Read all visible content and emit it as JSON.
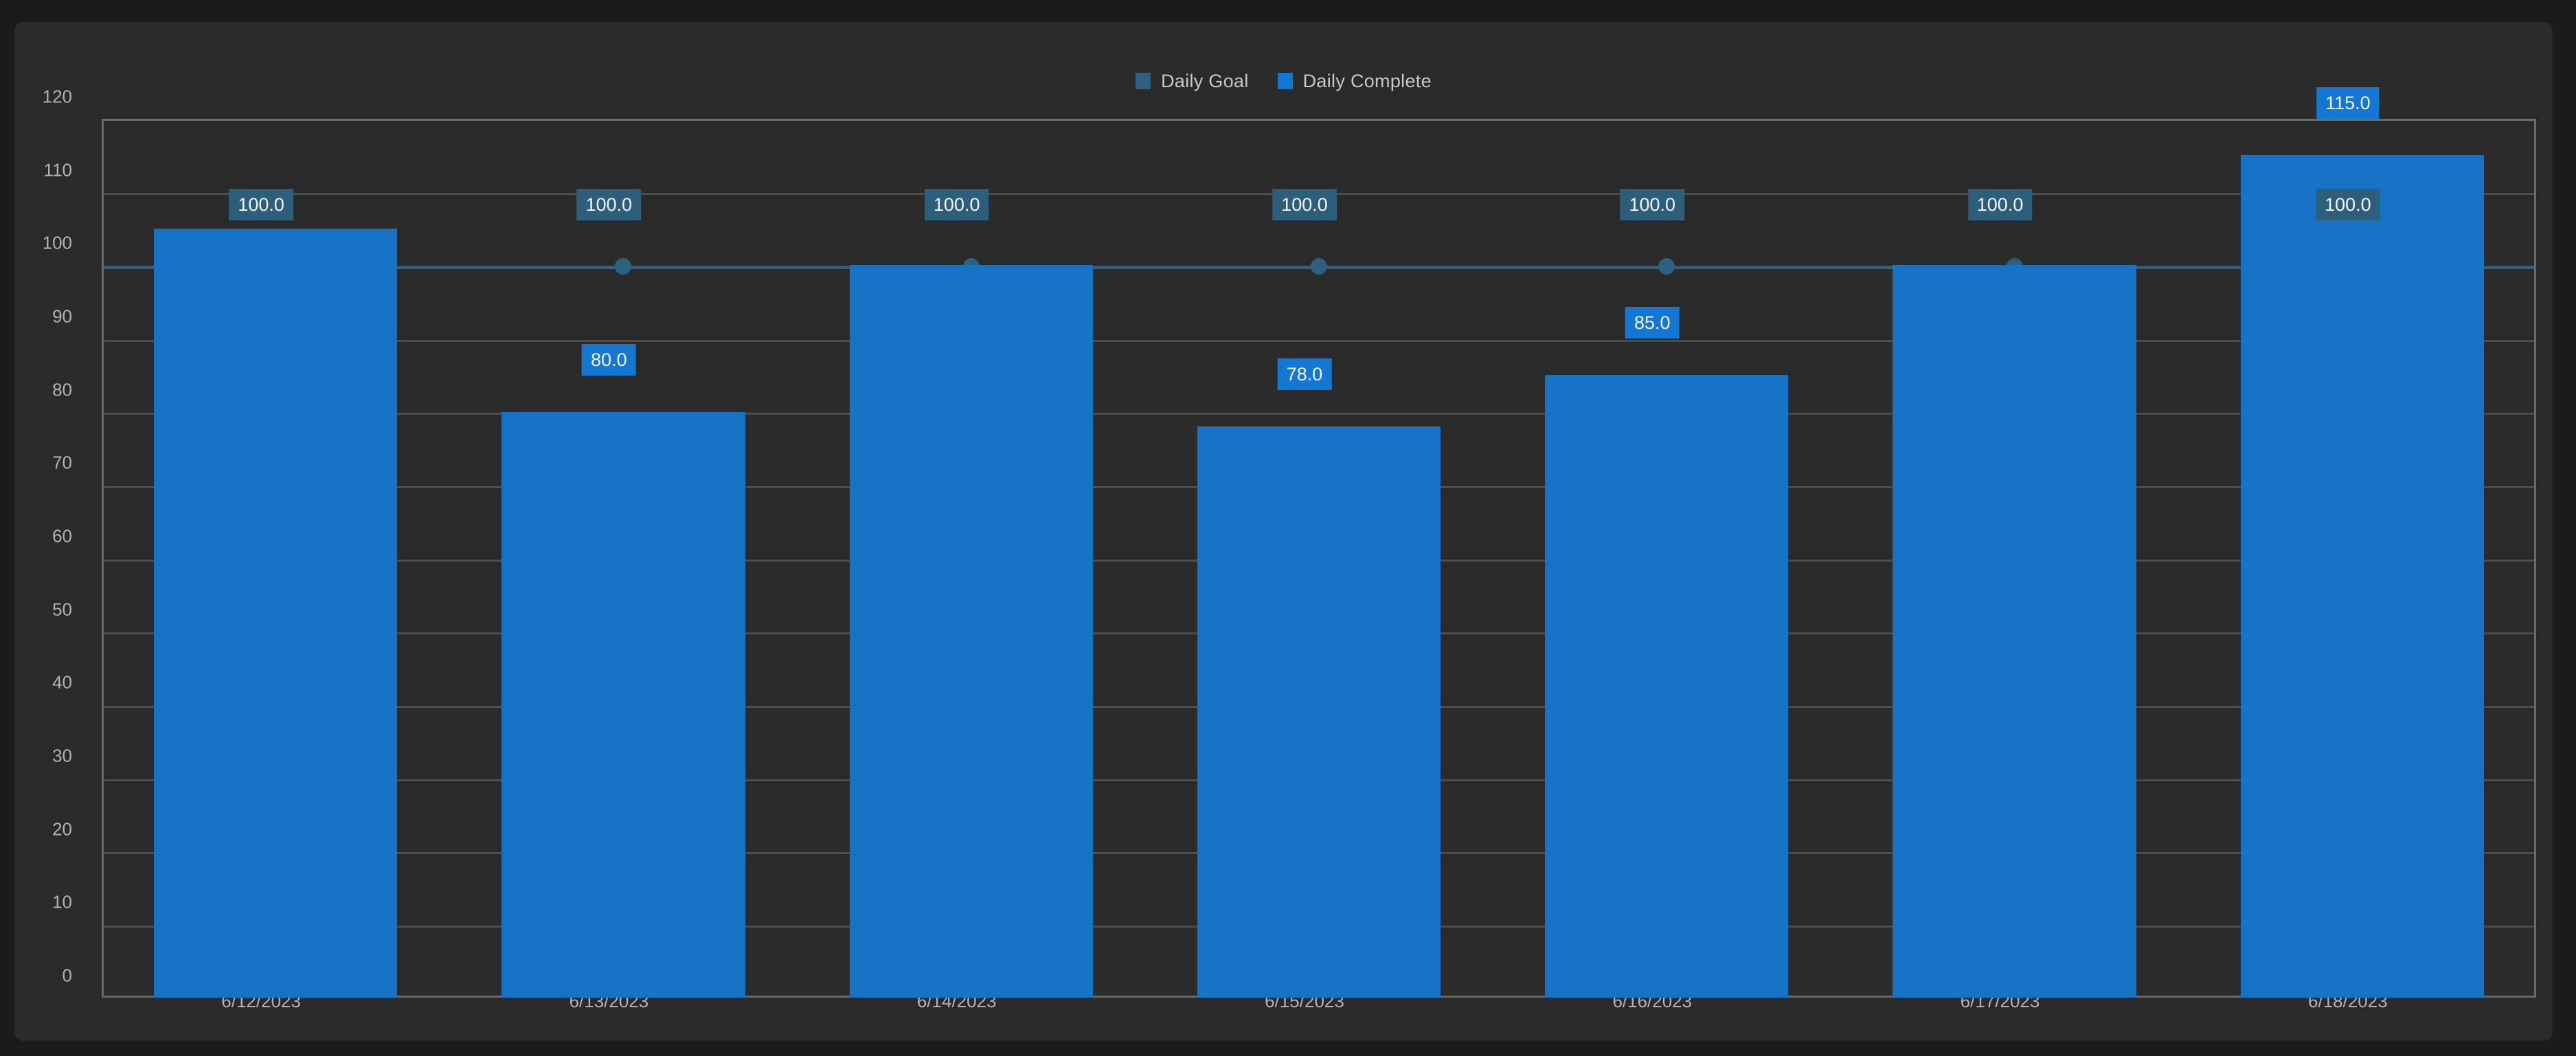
{
  "legend": {
    "items": [
      {
        "label": "Daily Goal",
        "color": "#2e6181"
      },
      {
        "label": "Daily Complete",
        "color": "#1478d2"
      }
    ]
  },
  "colors": {
    "outer_background": "#1b1b1c",
    "panel_background": "#2a2a2b",
    "gridline": "#4d4d4e",
    "axis_frame": "#6a6a6a",
    "tick_text": "#b2b2b2",
    "legend_text": "#c8c8c8",
    "badge_text": "#f4f4f4",
    "goal_series": "#2e6181",
    "goal_badge": "#2d5e7c",
    "bar_fill": "#1572c4",
    "bar_badge": "#1478d2"
  },
  "chart_data": {
    "type": "bar",
    "title": "",
    "xlabel": "",
    "ylabel": "",
    "categories": [
      "6/12/2023",
      "6/13/2023",
      "6/14/2023",
      "6/15/2023",
      "6/16/2023",
      "6/17/2023",
      "6/18/2023"
    ],
    "series": [
      {
        "name": "Daily Goal",
        "render": "line-with-markers",
        "color": "#2e6181",
        "values": [
          100,
          100,
          100,
          100,
          100,
          100,
          100
        ]
      },
      {
        "name": "Daily Complete",
        "render": "bar",
        "color": "#1572c4",
        "values": [
          105,
          80,
          100,
          78,
          85,
          100,
          115
        ]
      }
    ],
    "visible_value_labels": {
      "daily_goal": [
        "100.0",
        "100.0",
        "100.0",
        "100.0",
        "100.0",
        "100.0",
        "100.0"
      ],
      "daily_complete": [
        null,
        "80.0",
        null,
        "78.0",
        "85.0",
        null,
        "115.0"
      ]
    },
    "ylim": [
      0,
      120
    ],
    "ytick_step": 10,
    "yticks": [
      0,
      10,
      20,
      30,
      40,
      50,
      60,
      70,
      80,
      90,
      100,
      110,
      120
    ],
    "grid": true,
    "legend_position": "top-center",
    "goal_line_value": 100
  }
}
